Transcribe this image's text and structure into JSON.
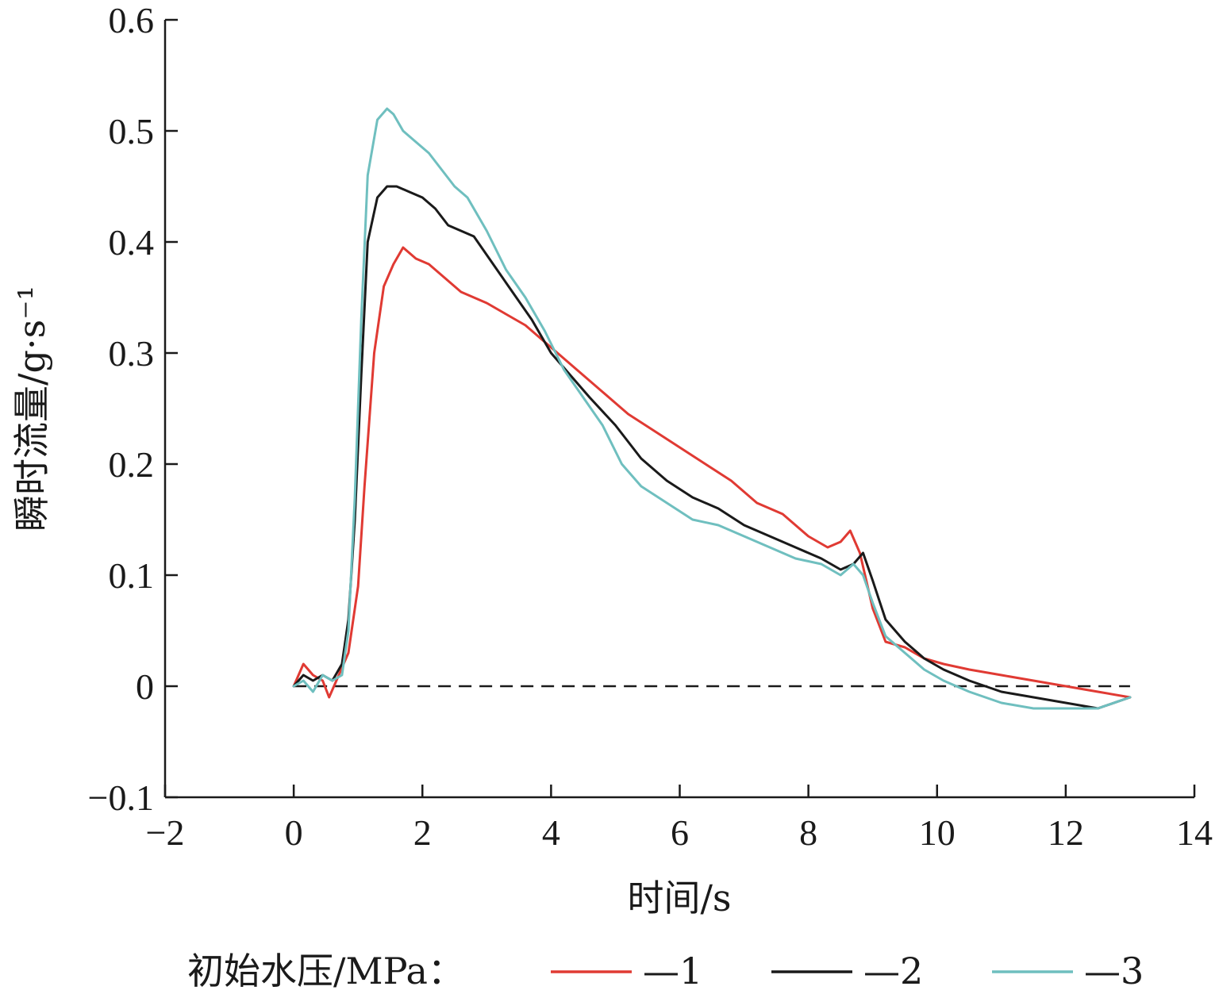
{
  "chart_data": {
    "type": "line",
    "xlabel": "时间/s",
    "ylabel": "瞬时流量/g·s⁻¹",
    "xlim": [
      -2,
      14
    ],
    "ylim": [
      -0.1,
      0.6
    ],
    "xticks": [
      -2,
      0,
      2,
      4,
      6,
      8,
      10,
      12,
      14
    ],
    "xtick_labels": [
      "−2",
      "0",
      "2",
      "4",
      "6",
      "8",
      "10",
      "12",
      "14"
    ],
    "yticks": [
      -0.1,
      0,
      0.1,
      0.2,
      0.3,
      0.4,
      0.5,
      0.6
    ],
    "ytick_labels": [
      "−0.1",
      "0",
      "0.1",
      "0.2",
      "0.3",
      "0.4",
      "0.5",
      "0.6"
    ],
    "grid": false,
    "legend_position": "bottom",
    "legend_title": "初始水压/MPa：",
    "reference_line": {
      "y": 0,
      "x_range": [
        0,
        13
      ],
      "style": "dashed",
      "color": "#1a1a1a"
    },
    "series": [
      {
        "name": "—1",
        "color": "#e03a33",
        "x": [
          0,
          0.15,
          0.3,
          0.45,
          0.55,
          0.7,
          0.85,
          1.0,
          1.1,
          1.25,
          1.4,
          1.55,
          1.7,
          1.9,
          2.1,
          2.3,
          2.6,
          3.0,
          3.3,
          3.6,
          3.9,
          4.2,
          4.5,
          4.8,
          5.2,
          5.6,
          6.0,
          6.4,
          6.8,
          7.2,
          7.6,
          8.0,
          8.3,
          8.5,
          8.65,
          8.8,
          9.0,
          9.2,
          9.5,
          9.8,
          10.1,
          10.5,
          11.0,
          11.5,
          12.0,
          12.5,
          13.0
        ],
        "y": [
          0.0,
          0.02,
          0.01,
          0.005,
          -0.01,
          0.01,
          0.03,
          0.09,
          0.18,
          0.3,
          0.36,
          0.38,
          0.395,
          0.385,
          0.38,
          0.37,
          0.355,
          0.345,
          0.335,
          0.325,
          0.31,
          0.295,
          0.28,
          0.265,
          0.245,
          0.23,
          0.215,
          0.2,
          0.185,
          0.165,
          0.155,
          0.135,
          0.125,
          0.13,
          0.14,
          0.12,
          0.07,
          0.04,
          0.035,
          0.025,
          0.02,
          0.015,
          0.01,
          0.005,
          0.0,
          -0.005,
          -0.01
        ]
      },
      {
        "name": "—2",
        "color": "#1a1a1a",
        "x": [
          0,
          0.15,
          0.3,
          0.45,
          0.6,
          0.75,
          0.85,
          0.95,
          1.05,
          1.15,
          1.3,
          1.45,
          1.6,
          1.8,
          2.0,
          2.2,
          2.4,
          2.6,
          2.8,
          3.1,
          3.4,
          3.7,
          4.0,
          4.3,
          4.6,
          5.0,
          5.4,
          5.8,
          6.2,
          6.6,
          7.0,
          7.4,
          7.8,
          8.2,
          8.5,
          8.7,
          8.85,
          9.0,
          9.2,
          9.5,
          9.8,
          10.1,
          10.5,
          11.0,
          11.5,
          12.0,
          12.5,
          13.0
        ],
        "y": [
          0.0,
          0.01,
          0.005,
          0.01,
          0.005,
          0.02,
          0.06,
          0.15,
          0.28,
          0.4,
          0.44,
          0.45,
          0.45,
          0.445,
          0.44,
          0.43,
          0.415,
          0.41,
          0.405,
          0.38,
          0.355,
          0.33,
          0.3,
          0.28,
          0.26,
          0.235,
          0.205,
          0.185,
          0.17,
          0.16,
          0.145,
          0.135,
          0.125,
          0.115,
          0.105,
          0.11,
          0.12,
          0.095,
          0.06,
          0.04,
          0.025,
          0.015,
          0.005,
          -0.005,
          -0.01,
          -0.015,
          -0.02,
          -0.01
        ]
      },
      {
        "name": "—3",
        "color": "#6fbfbf",
        "x": [
          0,
          0.15,
          0.3,
          0.45,
          0.6,
          0.75,
          0.85,
          0.95,
          1.05,
          1.15,
          1.3,
          1.45,
          1.55,
          1.7,
          1.9,
          2.1,
          2.3,
          2.5,
          2.7,
          3.0,
          3.3,
          3.6,
          3.9,
          4.2,
          4.5,
          4.8,
          5.1,
          5.4,
          5.8,
          6.2,
          6.6,
          7.0,
          7.4,
          7.8,
          8.2,
          8.5,
          8.7,
          8.85,
          9.0,
          9.2,
          9.5,
          9.8,
          10.1,
          10.5,
          11.0,
          11.5,
          12.0,
          12.5,
          13.0
        ],
        "y": [
          0.0,
          0.005,
          -0.005,
          0.01,
          0.005,
          0.01,
          0.05,
          0.17,
          0.33,
          0.46,
          0.51,
          0.52,
          0.515,
          0.5,
          0.49,
          0.48,
          0.465,
          0.45,
          0.44,
          0.41,
          0.375,
          0.35,
          0.32,
          0.285,
          0.26,
          0.235,
          0.2,
          0.18,
          0.165,
          0.15,
          0.145,
          0.135,
          0.125,
          0.115,
          0.11,
          0.1,
          0.11,
          0.1,
          0.075,
          0.045,
          0.03,
          0.015,
          0.005,
          -0.005,
          -0.015,
          -0.02,
          -0.02,
          -0.02,
          -0.01
        ]
      }
    ]
  }
}
